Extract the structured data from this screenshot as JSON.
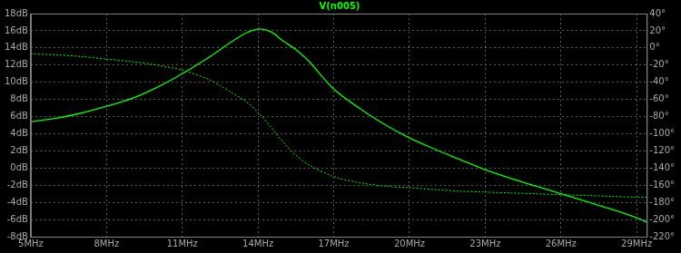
{
  "chart_data": {
    "type": "line",
    "title": "V(n005)",
    "x": [
      5,
      6,
      7,
      8,
      9,
      10,
      11,
      12,
      12.5,
      13,
      13.5,
      14,
      14.5,
      15,
      15.5,
      16,
      17,
      18,
      19,
      20,
      21,
      22,
      23,
      24,
      25,
      26,
      27,
      28,
      29,
      29.4
    ],
    "series": [
      {
        "color": "#00ff00",
        "line_style": "solid",
        "values": [
          5.4,
          5.8,
          6.4,
          7.2,
          8.1,
          9.4,
          11.0,
          12.8,
          13.8,
          14.8,
          15.7,
          16.2,
          15.9,
          14.8,
          13.8,
          12.5,
          9.2,
          7.0,
          5.1,
          3.5,
          2.2,
          1.0,
          -0.2,
          -1.2,
          -2.1,
          -3.0,
          -3.9,
          -4.8,
          -5.8,
          -6.3
        ]
      },
      {
        "color": "#00ff00",
        "line_style": "dotted",
        "axis": "y2",
        "values": [
          -7,
          -8,
          -10,
          -13,
          -16,
          -20,
          -26,
          -36,
          -44,
          -53,
          -62,
          -75,
          -92,
          -110,
          -125,
          -136,
          -150,
          -157,
          -161,
          -163,
          -165,
          -167,
          -168,
          -169,
          -170,
          -171,
          -172,
          -173,
          -174,
          -174
        ]
      }
    ],
    "xlim": [
      5,
      29.4
    ],
    "xticks": [
      {
        "value": 5,
        "label": "5MHz"
      },
      {
        "value": 8,
        "label": "8MHz"
      },
      {
        "value": 11,
        "label": "11MHz"
      },
      {
        "value": 14,
        "label": "14MHz"
      },
      {
        "value": 17,
        "label": "17MHz"
      },
      {
        "value": 20,
        "label": "20MHz"
      },
      {
        "value": 23,
        "label": "23MHz"
      },
      {
        "value": 26,
        "label": "26MHz"
      },
      {
        "value": 29,
        "label": "29MHz"
      }
    ],
    "ylim": [
      -8,
      18
    ],
    "yticks": [
      {
        "value": -8,
        "label": "-8dB"
      },
      {
        "value": -6,
        "label": "-6dB"
      },
      {
        "value": -4,
        "label": "-4dB"
      },
      {
        "value": -2,
        "label": "-2dB"
      },
      {
        "value": 0,
        "label": "0dB"
      },
      {
        "value": 2,
        "label": "2dB"
      },
      {
        "value": 4,
        "label": "4dB"
      },
      {
        "value": 6,
        "label": "6dB"
      },
      {
        "value": 8,
        "label": "8dB"
      },
      {
        "value": 10,
        "label": "10dB"
      },
      {
        "value": 12,
        "label": "12dB"
      },
      {
        "value": 14,
        "label": "14dB"
      },
      {
        "value": 16,
        "label": "16dB"
      },
      {
        "value": 18,
        "label": "18dB"
      }
    ],
    "y2lim": [
      -220,
      40
    ],
    "y2ticks": [
      {
        "value": -220,
        "label": "-220°"
      },
      {
        "value": -200,
        "label": "-200°"
      },
      {
        "value": -180,
        "label": "-180°"
      },
      {
        "value": -160,
        "label": "-160°"
      },
      {
        "value": -140,
        "label": "-140°"
      },
      {
        "value": -120,
        "label": "-120°"
      },
      {
        "value": -100,
        "label": "-100°"
      },
      {
        "value": -80,
        "label": "-80°"
      },
      {
        "value": -60,
        "label": "-60°"
      },
      {
        "value": -40,
        "label": "-40°"
      },
      {
        "value": -20,
        "label": "-20°"
      },
      {
        "value": 0,
        "label": "0°"
      },
      {
        "value": 20,
        "label": "20°"
      },
      {
        "value": 40,
        "label": "40°"
      }
    ],
    "grid": true
  }
}
